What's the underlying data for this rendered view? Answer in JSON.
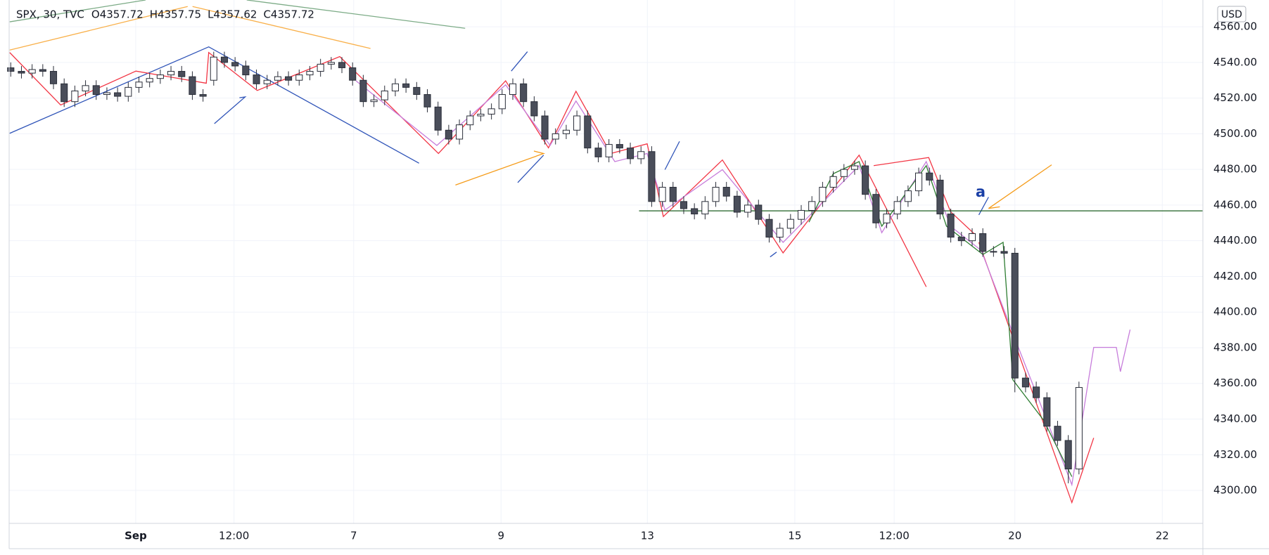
{
  "chart_data": {
    "type": "candlestick",
    "title": "SPX, 30, TVC",
    "ohlc": [
      "O4357.72",
      "H4357.75",
      "L4357.62",
      "C4357.72"
    ],
    "currency": "USD",
    "annotation": "a",
    "up_color": "#ffffff",
    "down_color": "#4a4e5a",
    "border_color": "#2a2e39",
    "grid": true,
    "xlim": [
      -0.15,
      111.6
    ],
    "ylim": [
      4281.5,
      4575
    ],
    "xticks": [
      {
        "value": 11.7,
        "label": "Sep"
      },
      {
        "value": 20.9,
        "label": "12:00"
      },
      {
        "value": 32.1,
        "label": "7"
      },
      {
        "value": 45.9,
        "label": "9"
      },
      {
        "value": 59.6,
        "label": "13"
      },
      {
        "value": 73.4,
        "label": "15"
      },
      {
        "value": 82.7,
        "label": "12:00"
      },
      {
        "value": 94.0,
        "label": "20"
      },
      {
        "value": 107.8,
        "label": "22"
      }
    ],
    "yticks": [
      {
        "value": 4300,
        "label": "4300.00"
      },
      {
        "value": 4320,
        "label": "4320.00"
      },
      {
        "value": 4340,
        "label": "4340.00"
      },
      {
        "value": 4360,
        "label": "4360.00"
      },
      {
        "value": 4380,
        "label": "4380.00"
      },
      {
        "value": 4400,
        "label": "4400.00"
      },
      {
        "value": 4420,
        "label": "4420.00"
      },
      {
        "value": 4440,
        "label": "4440.00"
      },
      {
        "value": 4460,
        "label": "4460.00"
      },
      {
        "value": 4480,
        "label": "4480.00"
      },
      {
        "value": 4500,
        "label": "4500.00"
      },
      {
        "value": 4520,
        "label": "4520.00"
      },
      {
        "value": 4540,
        "label": "4540.00"
      },
      {
        "value": 4560,
        "label": "4560.00"
      }
    ],
    "open": [
      4537,
      4535,
      4534,
      4536,
      4535,
      4528,
      4518,
      4524,
      4527,
      4522,
      4523,
      4521,
      4526,
      4529,
      4531,
      4533,
      4535,
      4532,
      4522,
      4530,
      4543,
      4540,
      4538,
      4533,
      4528,
      4530,
      4532,
      4530,
      4533,
      4535,
      4539,
      4540,
      4537,
      4530,
      4518,
      4519,
      4524,
      4528,
      4526,
      4522,
      4515,
      4502,
      4497,
      4505,
      4510,
      4511,
      4514,
      4522,
      4528,
      4518,
      4510,
      4497,
      4500,
      4502,
      4510,
      4492,
      4487,
      4494,
      4492,
      4486,
      4490,
      4462,
      4470,
      4462,
      4458,
      4455,
      4462,
      4470,
      4465,
      4456,
      4460,
      4452,
      4442,
      4447,
      4452,
      4457,
      4462,
      4470,
      4476,
      4480,
      4482,
      4466,
      4450,
      4455,
      4462,
      4468,
      4478,
      4474,
      4455,
      4442,
      4440,
      4444,
      4434,
      4434,
      4433,
      4363,
      4358,
      4352,
      4336,
      4328,
      4312
    ],
    "high": [
      4540,
      4538,
      4539,
      4539,
      4538,
      4531,
      4527,
      4530,
      4530,
      4526,
      4526,
      4529,
      4532,
      4534,
      4536,
      4538,
      4538,
      4535,
      4525,
      4546,
      4546,
      4543,
      4541,
      4536,
      4533,
      4535,
      4535,
      4536,
      4538,
      4542,
      4543,
      4543,
      4540,
      4533,
      4522,
      4527,
      4531,
      4531,
      4529,
      4525,
      4518,
      4505,
      4508,
      4513,
      4514,
      4517,
      4525,
      4531,
      4531,
      4521,
      4513,
      4503,
      4505,
      4513,
      4513,
      4495,
      4497,
      4497,
      4495,
      4493,
      4493,
      4473,
      4473,
      4465,
      4461,
      4465,
      4473,
      4473,
      4468,
      4463,
      4463,
      4455,
      4450,
      4455,
      4460,
      4465,
      4473,
      4479,
      4483,
      4485,
      4485,
      4469,
      4458,
      4465,
      4471,
      4481,
      4481,
      4477,
      4458,
      4445,
      4447,
      4447,
      4437,
      4437,
      4436,
      4366,
      4361,
      4355,
      4339,
      4331,
      4361
    ],
    "low": [
      4532,
      4531,
      4531,
      4532,
      4525,
      4515,
      4515,
      4521,
      4519,
      4519,
      4518,
      4518,
      4523,
      4526,
      4528,
      4530,
      4529,
      4519,
      4518,
      4527,
      4537,
      4535,
      4530,
      4525,
      4525,
      4527,
      4527,
      4527,
      4530,
      4532,
      4536,
      4534,
      4527,
      4515,
      4515,
      4516,
      4521,
      4523,
      4519,
      4512,
      4499,
      4494,
      4494,
      4502,
      4507,
      4508,
      4511,
      4519,
      4515,
      4507,
      4494,
      4494,
      4497,
      4499,
      4489,
      4484,
      4484,
      4489,
      4483,
      4483,
      4459,
      4459,
      4459,
      4455,
      4452,
      4452,
      4459,
      4462,
      4453,
      4453,
      4449,
      4439,
      4439,
      4444,
      4449,
      4454,
      4459,
      4467,
      4473,
      4477,
      4463,
      4447,
      4447,
      4452,
      4459,
      4465,
      4471,
      4452,
      4439,
      4437,
      4437,
      4431,
      4431,
      4430,
      4355,
      4355,
      4349,
      4333,
      4325,
      4304,
      4309
    ],
    "close": [
      4535,
      4534,
      4536,
      4535,
      4528,
      4518,
      4524,
      4527,
      4522,
      4523,
      4521,
      4526,
      4529,
      4531,
      4533,
      4535,
      4532,
      4522,
      4521,
      4543,
      4540,
      4538,
      4533,
      4528,
      4530,
      4532,
      4530,
      4533,
      4535,
      4539,
      4540,
      4537,
      4530,
      4518,
      4519,
      4524,
      4528,
      4526,
      4522,
      4515,
      4502,
      4497,
      4505,
      4510,
      4511,
      4514,
      4522,
      4528,
      4518,
      4510,
      4497,
      4500,
      4502,
      4510,
      4492,
      4487,
      4494,
      4492,
      4486,
      4490,
      4462,
      4470,
      4462,
      4458,
      4455,
      4462,
      4470,
      4465,
      4456,
      4460,
      4452,
      4442,
      4447,
      4452,
      4457,
      4462,
      4470,
      4476,
      4480,
      4482,
      4466,
      4450,
      4455,
      4462,
      4468,
      4478,
      4474,
      4455,
      4442,
      4440,
      4444,
      4434,
      4434,
      4433,
      4363,
      4358,
      4352,
      4336,
      4328,
      4312,
      4357.72
    ]
  }
}
